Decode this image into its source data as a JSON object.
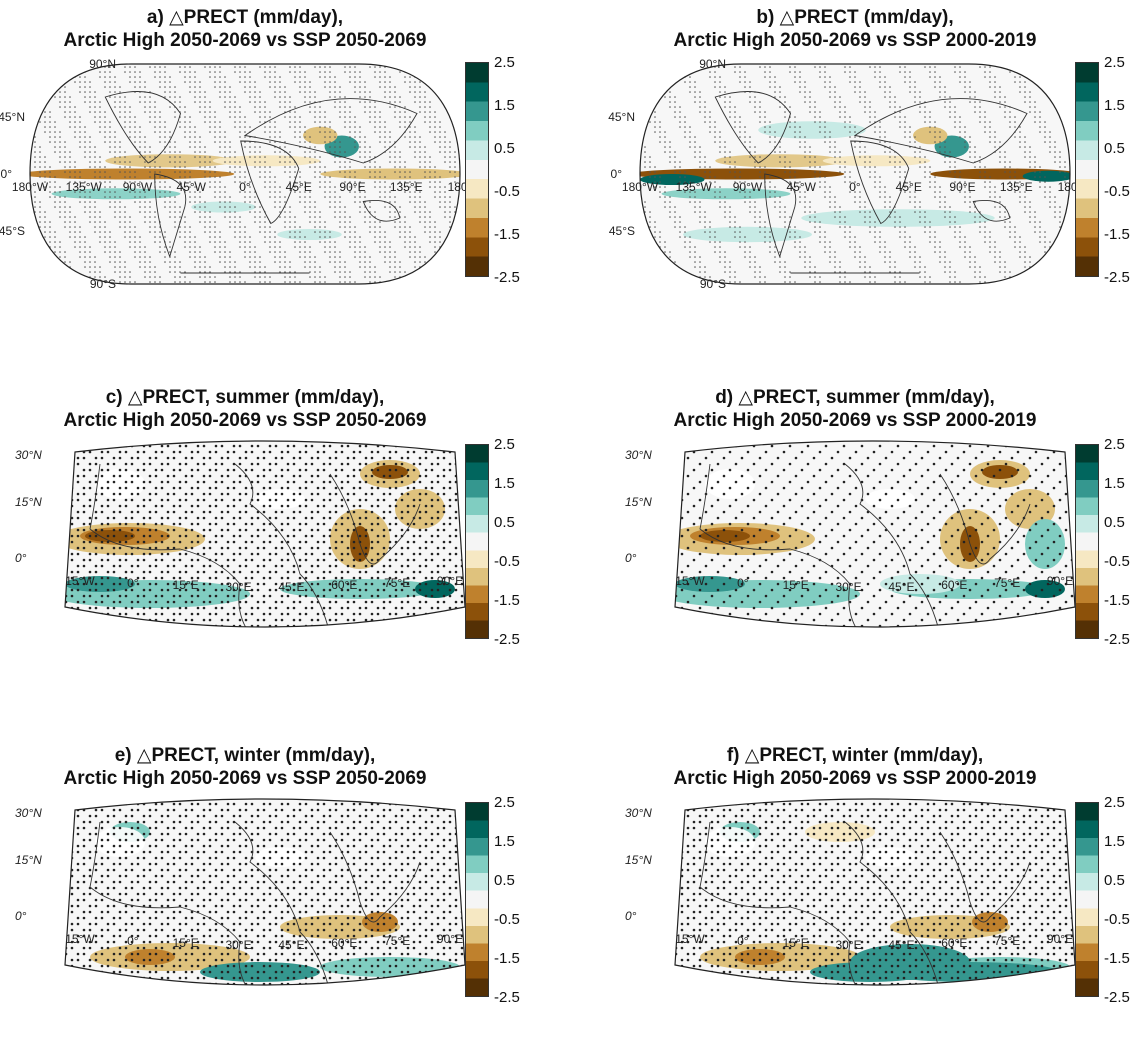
{
  "panels": [
    {
      "id": "a",
      "title1": "a) △PRECT (mm/day),",
      "title2": "Arctic High 2050-2069 vs SSP 2050-2069",
      "map": "global",
      "lat_labels": [
        "90°N",
        "45°N",
        "0°",
        "45°S",
        "90°S"
      ],
      "lon_labels": [
        "180°W",
        "135°W",
        "90°W",
        "45°W",
        "0°",
        "45°E",
        "90°E",
        "135°E",
        "180°"
      ]
    },
    {
      "id": "b",
      "title1": "b) △PRECT (mm/day),",
      "title2": "Arctic High 2050-2069 vs SSP 2000-2019",
      "map": "global",
      "lat_labels": [
        "90°N",
        "45°N",
        "0°",
        "45°S",
        "90°S"
      ],
      "lon_labels": [
        "180°W",
        "135°W",
        "90°W",
        "45°W",
        "0°",
        "45°E",
        "90°E",
        "135°E",
        "180°"
      ]
    },
    {
      "id": "c",
      "title1": "c) △PRECT, summer (mm/day),",
      "title2": "Arctic High 2050-2069 vs SSP 2050-2069",
      "map": "regional",
      "lat_labels": [
        "30°N",
        "15°N",
        "0°"
      ],
      "lon_labels": [
        "15°W",
        "0°",
        "15°E",
        "30°E",
        "45°E",
        "60°E",
        "75°E",
        "90°E"
      ]
    },
    {
      "id": "d",
      "title1": "d) △PRECT, summer (mm/day),",
      "title2": "Arctic High 2050-2069 vs SSP 2000-2019",
      "map": "regional",
      "lat_labels": [
        "30°N",
        "15°N",
        "0°"
      ],
      "lon_labels": [
        "15°W",
        "0°",
        "15°E",
        "30°E",
        "45°E",
        "60°E",
        "75°E",
        "90°E"
      ]
    },
    {
      "id": "e",
      "title1": "e) △PRECT, winter (mm/day),",
      "title2": "Arctic High 2050-2069 vs SSP 2050-2069",
      "map": "regional",
      "lat_labels": [
        "30°N",
        "15°N",
        "0°"
      ],
      "lon_labels": [
        "15°W",
        "0°",
        "15°E",
        "30°E",
        "45°E",
        "60°E",
        "75°E",
        "90°E"
      ]
    },
    {
      "id": "f",
      "title1": "f) △PRECT, winter (mm/day),",
      "title2": "Arctic High 2050-2069 vs SSP 2000-2019",
      "map": "regional",
      "lat_labels": [
        "30°N",
        "15°N",
        "0°"
      ],
      "lon_labels": [
        "15°W",
        "0°",
        "15°E",
        "30°E",
        "45°E",
        "60°E",
        "75°E",
        "90°E"
      ]
    }
  ],
  "colorbar": {
    "ticks": [
      "2.5",
      "1.5",
      "0.5",
      "-0.5",
      "-1.5",
      "-2.5"
    ],
    "range": [
      -2.5,
      2.5
    ],
    "colors": [
      "#003c30",
      "#01665e",
      "#35978f",
      "#80cdc1",
      "#c7eae5",
      "#f5f5f5",
      "#f6e8c3",
      "#dfc27d",
      "#bf812d",
      "#8c510a",
      "#543005"
    ]
  },
  "chart_data": [
    {
      "type": "heatmap",
      "title": "a) △PRECT (mm/day), Arctic High 2050-2069 vs SSP 2050-2069",
      "colorbar_range": [
        -2.5,
        2.5
      ],
      "colorbar_ticks": [
        2.5,
        1.5,
        0.5,
        -0.5,
        -1.5,
        -2.5
      ]
    },
    {
      "type": "heatmap",
      "title": "b) △PRECT (mm/day), Arctic High 2050-2069 vs SSP 2000-2019",
      "colorbar_range": [
        -2.5,
        2.5
      ],
      "colorbar_ticks": [
        2.5,
        1.5,
        0.5,
        -0.5,
        -1.5,
        -2.5
      ]
    },
    {
      "type": "heatmap",
      "title": "c) △PRECT, summer (mm/day), Arctic High 2050-2069 vs SSP 2050-2069",
      "colorbar_range": [
        -2.5,
        2.5
      ],
      "colorbar_ticks": [
        2.5,
        1.5,
        0.5,
        -0.5,
        -1.5,
        -2.5
      ]
    },
    {
      "type": "heatmap",
      "title": "d) △PRECT, summer (mm/day), Arctic High 2050-2069 vs SSP 2000-2019",
      "colorbar_range": [
        -2.5,
        2.5
      ],
      "colorbar_ticks": [
        2.5,
        1.5,
        0.5,
        -0.5,
        -1.5,
        -2.5
      ]
    },
    {
      "type": "heatmap",
      "title": "e) △PRECT, winter (mm/day), Arctic High 2050-2069 vs SSP 2050-2069",
      "colorbar_range": [
        -2.5,
        2.5
      ],
      "colorbar_ticks": [
        2.5,
        1.5,
        0.5,
        -0.5,
        -1.5,
        -2.5
      ]
    },
    {
      "type": "heatmap",
      "title": "f) △PRECT, winter (mm/day), Arctic High 2050-2069 vs SSP 2000-2019",
      "colorbar_range": [
        -2.5,
        2.5
      ],
      "colorbar_ticks": [
        2.5,
        1.5,
        0.5,
        -0.5,
        -1.5,
        -2.5
      ]
    }
  ]
}
